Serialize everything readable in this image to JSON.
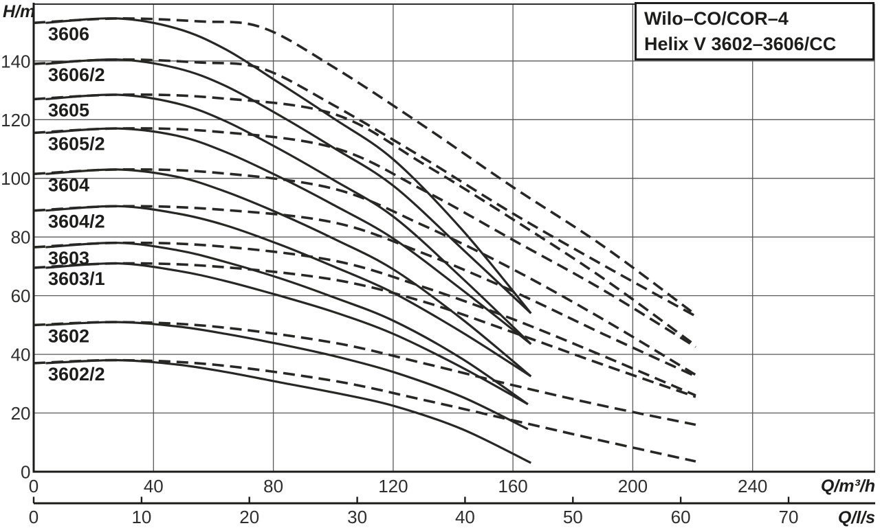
{
  "title_box": {
    "line1": "Wilo–CO/COR–4",
    "line2": "Helix V 3602–3606/CC"
  },
  "axis_units": {
    "y": "H/m",
    "x_primary": "Q/m³/h",
    "x_secondary": "Q/l/s"
  },
  "colors": {
    "background": "#ffffff",
    "curve": "#272725",
    "grid": "#58585a",
    "axis": "#1b1b19",
    "text": "#2e2e2c",
    "label": "#1d1d1b"
  },
  "chart_data": {
    "type": "line",
    "title": "Wilo–CO/COR–4 Helix V 3602–3606/CC",
    "xlabel": "Q/m³/h",
    "xlabel_secondary": "Q/l/s",
    "ylabel": "H/m",
    "xlim_m3h": [
      0,
      280
    ],
    "ylim_m": [
      0,
      159.4
    ],
    "grid": true,
    "x_ticks_m3h": [
      0,
      40,
      80,
      120,
      160,
      200,
      240
    ],
    "x_ticks_ls": [
      0,
      10,
      20,
      30,
      40,
      50,
      60,
      70
    ],
    "y_ticks_m": [
      0,
      20,
      40,
      60,
      80,
      100,
      120,
      140
    ],
    "curve_labels": [
      {
        "text": "3606",
        "h": 153
      },
      {
        "text": "3606/2",
        "h": 139
      },
      {
        "text": "3605",
        "h": 127
      },
      {
        "text": "3605/2",
        "h": 115.5
      },
      {
        "text": "3604",
        "h": 101.5
      },
      {
        "text": "3604/2",
        "h": 89
      },
      {
        "text": "3603",
        "h": 76.5
      },
      {
        "text": "3603/1",
        "h": 69.5
      },
      {
        "text": "3602",
        "h": 50
      },
      {
        "text": "3602/2",
        "h": 37
      }
    ],
    "series": [
      {
        "name": "3606",
        "style": "solid",
        "points": [
          [
            4,
            153
          ],
          [
            28,
            154.5
          ],
          [
            48,
            151
          ],
          [
            64,
            144
          ],
          [
            82,
            132.5
          ],
          [
            100,
            120.5
          ],
          [
            120,
            106.5
          ],
          [
            143,
            82.5
          ],
          [
            166,
            54
          ]
        ]
      },
      {
        "name": "3606/2",
        "style": "solid",
        "points": [
          [
            4,
            139
          ],
          [
            28,
            140.5
          ],
          [
            48,
            137.5
          ],
          [
            64,
            131.5
          ],
          [
            82,
            121.5
          ],
          [
            100,
            110.5
          ],
          [
            120,
            97.5
          ],
          [
            143,
            76
          ],
          [
            166,
            54
          ]
        ]
      },
      {
        "name": "3605",
        "style": "solid",
        "points": [
          [
            4,
            127
          ],
          [
            28,
            128.5
          ],
          [
            48,
            125.5
          ],
          [
            64,
            119.5
          ],
          [
            82,
            110
          ],
          [
            100,
            99.5
          ],
          [
            120,
            87
          ],
          [
            143,
            66
          ],
          [
            166,
            43.5
          ]
        ]
      },
      {
        "name": "3605/2",
        "style": "solid",
        "points": [
          [
            4,
            115.5
          ],
          [
            28,
            117
          ],
          [
            48,
            114.5
          ],
          [
            64,
            109
          ],
          [
            82,
            100.5
          ],
          [
            100,
            91
          ],
          [
            120,
            79.5
          ],
          [
            143,
            62
          ],
          [
            166,
            43.5
          ]
        ]
      },
      {
        "name": "3604",
        "style": "solid",
        "points": [
          [
            4,
            101.5
          ],
          [
            28,
            103
          ],
          [
            48,
            100.5
          ],
          [
            64,
            95.5
          ],
          [
            82,
            88
          ],
          [
            100,
            79.5
          ],
          [
            120,
            69
          ],
          [
            143,
            52
          ],
          [
            166,
            32.5
          ]
        ]
      },
      {
        "name": "3604/2",
        "style": "solid",
        "points": [
          [
            4,
            89
          ],
          [
            28,
            90.5
          ],
          [
            48,
            88
          ],
          [
            64,
            84
          ],
          [
            82,
            77.5
          ],
          [
            100,
            70
          ],
          [
            120,
            61
          ],
          [
            143,
            47.5
          ],
          [
            166,
            32.5
          ]
        ]
      },
      {
        "name": "3603",
        "style": "solid",
        "points": [
          [
            4,
            76.5
          ],
          [
            28,
            78
          ],
          [
            48,
            75.5
          ],
          [
            64,
            71.5
          ],
          [
            82,
            66
          ],
          [
            100,
            59.5
          ],
          [
            120,
            51.5
          ],
          [
            143,
            38.5
          ],
          [
            165,
            23
          ]
        ]
      },
      {
        "name": "3603/1",
        "style": "solid",
        "points": [
          [
            4,
            69.5
          ],
          [
            28,
            71
          ],
          [
            48,
            68.5
          ],
          [
            64,
            65
          ],
          [
            82,
            60
          ],
          [
            100,
            54.5
          ],
          [
            120,
            47
          ],
          [
            143,
            35.5
          ],
          [
            165,
            23
          ]
        ]
      },
      {
        "name": "3602",
        "style": "solid",
        "points": [
          [
            4,
            50
          ],
          [
            28,
            51
          ],
          [
            48,
            49.5
          ],
          [
            64,
            47
          ],
          [
            82,
            43.5
          ],
          [
            100,
            39.5
          ],
          [
            120,
            34
          ],
          [
            143,
            25.5
          ],
          [
            165,
            14.5
          ]
        ]
      },
      {
        "name": "3602/2",
        "style": "solid",
        "points": [
          [
            4,
            37
          ],
          [
            28,
            38
          ],
          [
            48,
            36.5
          ],
          [
            64,
            34
          ],
          [
            82,
            30.5
          ],
          [
            100,
            27
          ],
          [
            120,
            22.5
          ],
          [
            143,
            14.5
          ],
          [
            166,
            3
          ]
        ]
      },
      {
        "name": "3606",
        "style": "dashed",
        "points": [
          [
            0,
            153
          ],
          [
            28,
            154.5
          ],
          [
            55,
            153.5
          ],
          [
            76,
            151.5
          ],
          [
            100,
            138
          ],
          [
            130,
            118
          ],
          [
            160,
            97
          ],
          [
            190,
            77
          ],
          [
            221,
            53.5
          ]
        ]
      },
      {
        "name": "3606/2",
        "style": "dashed",
        "points": [
          [
            0,
            139
          ],
          [
            28,
            140.5
          ],
          [
            55,
            139.5
          ],
          [
            76,
            137.5
          ],
          [
            100,
            125
          ],
          [
            130,
            107
          ],
          [
            160,
            88
          ],
          [
            190,
            70.5
          ],
          [
            221,
            53
          ]
        ]
      },
      {
        "name": "3605",
        "style": "dashed",
        "points": [
          [
            0,
            127
          ],
          [
            28,
            128.5
          ],
          [
            60,
            127.5
          ],
          [
            100,
            122
          ],
          [
            130,
            105
          ],
          [
            160,
            86
          ],
          [
            190,
            66
          ],
          [
            221,
            43
          ]
        ]
      },
      {
        "name": "3605/2",
        "style": "dashed",
        "points": [
          [
            0,
            115.5
          ],
          [
            28,
            117
          ],
          [
            60,
            116
          ],
          [
            100,
            110.5
          ],
          [
            130,
            96
          ],
          [
            160,
            79
          ],
          [
            190,
            62
          ],
          [
            221,
            42.5
          ]
        ]
      },
      {
        "name": "3604",
        "style": "dashed",
        "points": [
          [
            0,
            101.5
          ],
          [
            28,
            103
          ],
          [
            60,
            102
          ],
          [
            100,
            96.5
          ],
          [
            130,
            84
          ],
          [
            160,
            69
          ],
          [
            190,
            52
          ],
          [
            221,
            33
          ]
        ]
      },
      {
        "name": "3604/2",
        "style": "dashed",
        "points": [
          [
            0,
            89
          ],
          [
            28,
            90.5
          ],
          [
            60,
            89.5
          ],
          [
            100,
            85
          ],
          [
            130,
            74.5
          ],
          [
            160,
            61.5
          ],
          [
            190,
            47
          ],
          [
            221,
            32.5
          ]
        ]
      },
      {
        "name": "3603",
        "style": "dashed",
        "points": [
          [
            0,
            76.5
          ],
          [
            28,
            78
          ],
          [
            60,
            77
          ],
          [
            100,
            72
          ],
          [
            130,
            63
          ],
          [
            160,
            52
          ],
          [
            190,
            39.5
          ],
          [
            221,
            26
          ]
        ]
      },
      {
        "name": "3603/1",
        "style": "dashed",
        "points": [
          [
            0,
            69.5
          ],
          [
            28,
            71
          ],
          [
            60,
            70
          ],
          [
            100,
            65.5
          ],
          [
            130,
            58
          ],
          [
            160,
            47.5
          ],
          [
            190,
            36.5
          ],
          [
            221,
            25.5
          ]
        ]
      },
      {
        "name": "3602",
        "style": "dashed",
        "points": [
          [
            0,
            50
          ],
          [
            28,
            51
          ],
          [
            60,
            49.5
          ],
          [
            100,
            44
          ],
          [
            130,
            37
          ],
          [
            160,
            29.5
          ],
          [
            190,
            22.5
          ],
          [
            221,
            16
          ]
        ]
      },
      {
        "name": "3602/2",
        "style": "dashed",
        "points": [
          [
            0,
            37
          ],
          [
            28,
            38
          ],
          [
            60,
            36.5
          ],
          [
            100,
            31
          ],
          [
            130,
            24.5
          ],
          [
            160,
            17.5
          ],
          [
            190,
            10.5
          ],
          [
            221,
            3.5
          ]
        ]
      }
    ]
  }
}
